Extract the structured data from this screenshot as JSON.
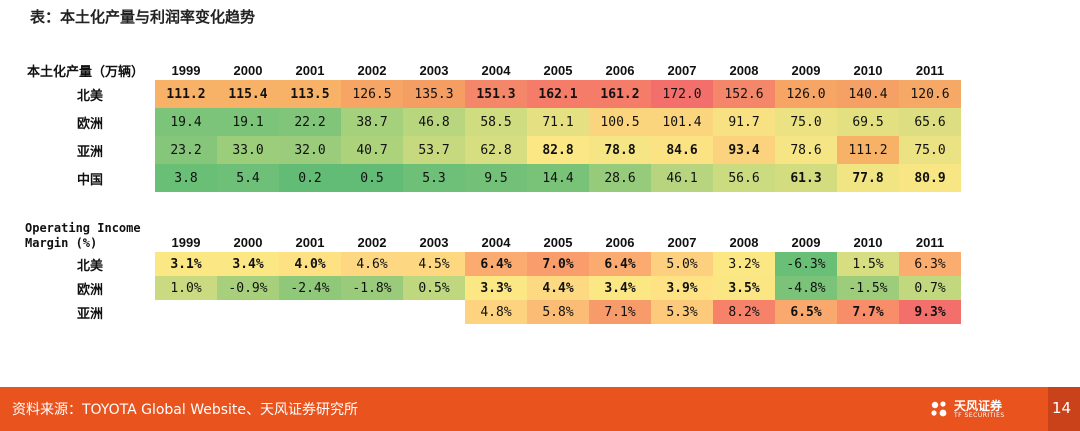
{
  "title": "表：本土化产量与利润率变化趋势",
  "years": [
    "1999",
    "2000",
    "2001",
    "2002",
    "2003",
    "2004",
    "2005",
    "2006",
    "2007",
    "2008",
    "2009",
    "2010",
    "2011"
  ],
  "production": {
    "header": "本土化产量（万辆）",
    "rows": [
      {
        "label": "北美",
        "values": [
          "111.2",
          "115.4",
          "113.5",
          "126.5",
          "135.3",
          "151.3",
          "162.1",
          "161.2",
          "172.0",
          "152.6",
          "126.0",
          "140.4",
          "120.6"
        ],
        "colors": [
          "#f7b267",
          "#f7b267",
          "#f7b267",
          "#f6a564",
          "#f59e63",
          "#f4876a",
          "#f47c69",
          "#f47c69",
          "#f36f6b",
          "#f4876a",
          "#f6a564",
          "#f5a064",
          "#f6a967"
        ],
        "bold": [
          true,
          true,
          true,
          false,
          false,
          true,
          true,
          true,
          false,
          false,
          false,
          false,
          false
        ]
      },
      {
        "label": "欧洲",
        "values": [
          "19.4",
          "19.1",
          "22.2",
          "38.7",
          "46.8",
          "58.5",
          "71.1",
          "100.5",
          "101.4",
          "91.7",
          "75.0",
          "69.5",
          "65.6"
        ],
        "colors": [
          "#7cc47a",
          "#7cc47a",
          "#80c57a",
          "#a6d17c",
          "#b7d67e",
          "#cfdc80",
          "#e5e182",
          "#fbd57d",
          "#fbd57d",
          "#f7e183",
          "#ebe283",
          "#e3e082",
          "#dcde81"
        ],
        "bold": [
          false,
          false,
          false,
          false,
          false,
          false,
          false,
          false,
          false,
          false,
          false,
          false,
          false
        ]
      },
      {
        "label": "亚洲",
        "values": [
          "23.2",
          "33.0",
          "32.0",
          "40.7",
          "53.7",
          "62.8",
          "82.8",
          "78.8",
          "84.6",
          "93.4",
          "78.6",
          "111.2",
          "75.0"
        ],
        "colors": [
          "#86c67a",
          "#9ccd7b",
          "#9acc7b",
          "#acd27c",
          "#c6d97f",
          "#d7de81",
          "#fbe784",
          "#f5e584",
          "#fbe384",
          "#fbd27d",
          "#f5e584",
          "#f7b267",
          "#ebe283"
        ],
        "bold": [
          false,
          false,
          false,
          false,
          false,
          false,
          true,
          true,
          true,
          true,
          false,
          false,
          false
        ]
      },
      {
        "label": "中国",
        "values": [
          "3.8",
          "5.4",
          "0.2",
          "0.5",
          "5.3",
          "9.5",
          "14.4",
          "28.6",
          "46.1",
          "56.6",
          "61.3",
          "77.8",
          "80.9"
        ],
        "colors": [
          "#6abf77",
          "#6ebf78",
          "#63bc76",
          "#63bc76",
          "#6ebf78",
          "#73c178",
          "#79c379",
          "#96cb7b",
          "#b6d57e",
          "#cadb80",
          "#d3dd80",
          "#f1e483",
          "#f8e684"
        ],
        "bold": [
          false,
          false,
          false,
          false,
          false,
          false,
          false,
          false,
          false,
          false,
          true,
          true,
          true
        ]
      }
    ]
  },
  "margin": {
    "header_line1": "Operating Income",
    "header_line2": "Margin (%)",
    "rows": [
      {
        "label": "北美",
        "values": [
          "3.1%",
          "3.4%",
          "4.0%",
          "4.6%",
          "4.5%",
          "6.4%",
          "7.0%",
          "6.4%",
          "5.0%",
          "3.2%",
          "-6.3%",
          "1.5%",
          "6.3%"
        ],
        "colors": [
          "#fbe784",
          "#fbe784",
          "#fde183",
          "#fdd781",
          "#fdd881",
          "#fbab6f",
          "#f89d6b",
          "#fbab6f",
          "#fdd07f",
          "#fbe784",
          "#6abf77",
          "#d6de81",
          "#fbad70"
        ],
        "bold": [
          true,
          true,
          true,
          false,
          false,
          true,
          true,
          true,
          false,
          false,
          false,
          false,
          false
        ]
      },
      {
        "label": "欧洲",
        "values": [
          "1.0%",
          "-0.9%",
          "-2.4%",
          "-1.8%",
          "0.5%",
          "3.3%",
          "4.4%",
          "3.4%",
          "3.9%",
          "3.5%",
          "-4.8%",
          "-1.5%",
          "0.7%"
        ],
        "colors": [
          "#c9da80",
          "#a8d07c",
          "#90c87a",
          "#99cb7b",
          "#bfd77f",
          "#fbe784",
          "#fdd981",
          "#fbe784",
          "#fee283",
          "#fbe684",
          "#7ac379",
          "#9dcc7b",
          "#c2d87f"
        ],
        "bold": [
          false,
          false,
          false,
          false,
          false,
          true,
          true,
          true,
          true,
          true,
          false,
          false,
          false
        ]
      },
      {
        "label": "亚洲",
        "values": [
          "",
          "",
          "",
          "",
          "",
          "4.8%",
          "5.8%",
          "7.1%",
          "5.3%",
          "8.2%",
          "6.5%",
          "7.7%",
          "9.3%"
        ],
        "colors": [
          "",
          "",
          "",
          "",
          "",
          "#fdd380",
          "#fbbd76",
          "#f89b6b",
          "#fdc97b",
          "#f6826a",
          "#faa96e",
          "#f78d69",
          "#f36f6b"
        ],
        "bold": [
          false,
          false,
          false,
          false,
          false,
          false,
          false,
          false,
          false,
          false,
          true,
          true,
          true
        ]
      }
    ]
  },
  "footer": {
    "source": "资料来源：TOYOTA Global Website、天风证券研究所",
    "logo_text": "天风证券",
    "logo_sub": "TF SECURITIES",
    "page": "14"
  }
}
